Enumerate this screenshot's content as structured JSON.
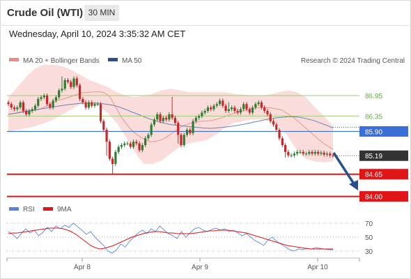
{
  "header": {
    "title": "Crude Oil (WTI)",
    "timeframe": "30 MIN",
    "datetime": "Wednesday, April 10, 2024 3:35:32 AM CET"
  },
  "legend": {
    "ma20": "MA 20 + Bollinger Bands",
    "ma50": "MA 50",
    "credit": "Research © 2024 Trading Central",
    "rsi": "RSI",
    "ma9": "9MA"
  },
  "colors": {
    "up": "#2e7d32",
    "down": "#c62828",
    "band": "#fadcda",
    "ma20": "#e8968e",
    "ma50": "#6f7fb5",
    "resistance": "#9dcc7a",
    "pivot": "#3b6fd8",
    "support": "#e01515",
    "current": "#333333",
    "arrow": "#27508f",
    "rsi": "#6b8fd9",
    "rsi_ma": "#e01515"
  },
  "chart_data": [
    {
      "type": "candlestick",
      "title": "Crude Oil (WTI)",
      "timeframe": "30 MIN",
      "x_tick_labels": [
        "Apr 8",
        "Apr 9",
        "Apr 10"
      ],
      "ylim": [
        83.93,
        86.99
      ],
      "levels": [
        {
          "value": 86.95,
          "label": "86.95",
          "kind": "resistance"
        },
        {
          "value": 86.35,
          "label": "86.35",
          "kind": "resistance"
        },
        {
          "value": 85.9,
          "label": "85.90",
          "kind": "pivot"
        },
        {
          "value": 85.19,
          "label": "85.19",
          "kind": "current"
        },
        {
          "value": 84.65,
          "label": "84.65",
          "kind": "support"
        },
        {
          "value": 84.0,
          "label": "84.00",
          "kind": "support"
        }
      ],
      "closes": [
        86.7,
        86.6,
        86.55,
        86.6,
        86.75,
        86.5,
        86.4,
        86.5,
        86.55,
        86.65,
        86.85,
        86.9,
        86.95,
        86.7,
        86.6,
        86.8,
        86.9,
        87.1,
        87.15,
        87.4,
        87.35,
        87.2,
        87.45,
        87.25,
        86.85,
        86.75,
        86.6,
        86.75,
        86.65,
        86.7,
        86.7,
        86.2,
        85.95,
        85.6,
        85.1,
        84.95,
        85.3,
        85.45,
        85.5,
        85.55,
        85.55,
        85.45,
        85.6,
        85.55,
        85.35,
        85.5,
        85.7,
        85.8,
        86.1,
        86.25,
        86.4,
        86.2,
        86.3,
        86.25,
        86.4,
        86.3,
        86.15,
        85.8,
        85.5,
        85.8,
        85.95,
        85.85,
        86.2,
        86.3,
        86.35,
        86.45,
        86.5,
        86.6,
        86.55,
        86.65,
        86.7,
        86.8,
        86.65,
        86.5,
        86.55,
        86.6,
        86.5,
        86.45,
        86.55,
        86.7,
        86.55,
        86.45,
        86.6,
        86.7,
        86.75,
        86.6,
        86.5,
        86.4,
        86.2,
        86.1,
        85.95,
        85.7,
        85.5,
        85.3,
        85.2,
        85.2,
        85.25,
        85.3,
        85.3,
        85.25,
        85.25,
        85.3,
        85.25,
        85.3,
        85.25,
        85.28,
        85.22,
        85.25,
        85.2,
        85.19
      ],
      "ma20": [
        86.4,
        86.42,
        86.43,
        86.45,
        86.47,
        86.48,
        86.5,
        86.52,
        86.55,
        86.6,
        86.65,
        86.72,
        86.78,
        86.82,
        86.85,
        86.88,
        86.92,
        86.96,
        87.0,
        87.03,
        87.04,
        87.05,
        87.06,
        87.06,
        87.05,
        87.0,
        86.9,
        86.7,
        86.5,
        86.3,
        86.15,
        86.0,
        85.88,
        85.8,
        85.72,
        85.66,
        85.6,
        85.6,
        85.62,
        85.65,
        85.7,
        85.78,
        85.86,
        85.94,
        86.02,
        86.08,
        86.12,
        86.15,
        86.18,
        86.2,
        86.2,
        86.21,
        86.22,
        86.25,
        86.28,
        86.32,
        86.36,
        86.4,
        86.44,
        86.48,
        86.5,
        86.53,
        86.56,
        86.58,
        86.6,
        86.6,
        86.6,
        86.59,
        86.57,
        86.55,
        86.52,
        86.45,
        86.38,
        86.3,
        86.2,
        86.1,
        86.0,
        85.9,
        85.8,
        85.7,
        85.6,
        85.52,
        85.45,
        85.38
      ],
      "ma50": [
        86.4,
        86.43,
        86.47,
        86.5,
        86.53,
        86.56,
        86.59,
        86.62,
        86.65,
        86.68,
        86.7,
        86.72,
        86.73,
        86.73,
        86.72,
        86.7,
        86.67,
        86.62,
        86.55,
        86.47,
        86.4,
        86.32,
        86.25,
        86.19,
        86.14,
        86.1,
        86.08,
        86.06,
        86.04,
        86.02,
        86.0,
        85.99,
        86.0,
        86.02,
        86.04,
        86.07,
        86.1,
        86.14,
        86.18,
        86.22,
        86.26,
        86.29,
        86.31,
        86.33,
        86.33,
        86.31,
        86.27,
        86.22,
        86.15,
        86.08,
        86.0
      ],
      "bollinger_upper": [
        86.9,
        87.2,
        87.5,
        87.75,
        87.85,
        87.85,
        87.8,
        87.7,
        87.55,
        87.4,
        87.3,
        87.2,
        87.05,
        86.95,
        86.9,
        86.95,
        87.0,
        87.1,
        87.15,
        87.1,
        87.05,
        87.05,
        87.05,
        87.05,
        87.05,
        87.0,
        86.98,
        86.95,
        86.95,
        86.98,
        87.05,
        87.1,
        87.05,
        86.9,
        86.6,
        86.35,
        86.05
      ],
      "bollinger_lower": [
        85.9,
        85.95,
        86.0,
        86.05,
        86.15,
        86.25,
        86.4,
        86.55,
        86.7,
        86.75,
        86.65,
        86.45,
        86.15,
        85.75,
        85.3,
        84.95,
        84.95,
        85.05,
        85.25,
        85.45,
        85.55,
        85.6,
        85.65,
        85.8,
        86.0,
        86.15,
        86.2,
        86.25,
        86.25,
        86.2,
        86.05,
        85.75,
        85.35,
        85.1,
        85.02,
        85.0,
        85.02
      ]
    },
    {
      "type": "line",
      "title": "RSI",
      "series": [
        {
          "name": "RSI",
          "values": [
            58,
            54,
            48,
            55,
            62,
            56,
            60,
            52,
            57,
            64,
            58,
            66,
            62,
            67,
            64,
            70,
            65,
            60,
            54,
            58,
            50,
            44,
            38,
            30,
            27,
            32,
            40,
            36,
            44,
            50,
            56,
            60,
            55,
            62,
            58,
            66,
            60,
            55,
            52,
            48,
            58,
            50,
            56,
            62,
            64,
            60,
            58,
            61,
            63,
            60,
            62,
            58,
            60,
            56,
            52,
            55,
            50,
            45,
            42,
            38,
            46,
            50,
            44,
            40,
            36,
            32,
            30,
            33,
            32,
            34,
            33,
            35,
            34,
            33,
            32,
            32
          ]
        },
        {
          "name": "9MA",
          "values": [
            55,
            56,
            56,
            57,
            58,
            59,
            60,
            61,
            62,
            63,
            63,
            63,
            62,
            60,
            57,
            53,
            48,
            43,
            38,
            35,
            33,
            34,
            36,
            38,
            41,
            44,
            47,
            50,
            52,
            54,
            56,
            57,
            58,
            58,
            57,
            56,
            56,
            55,
            55,
            55,
            55,
            56,
            57,
            58,
            59,
            59,
            60,
            60,
            60,
            59,
            58,
            57,
            56,
            54,
            52,
            50,
            48,
            46,
            44,
            42,
            40,
            38,
            37,
            36,
            35,
            34,
            33,
            33,
            33,
            33,
            33,
            33
          ]
        }
      ],
      "y_tick_labels": [
        "70",
        "50",
        "30"
      ],
      "ylim": [
        22,
        78
      ]
    }
  ]
}
